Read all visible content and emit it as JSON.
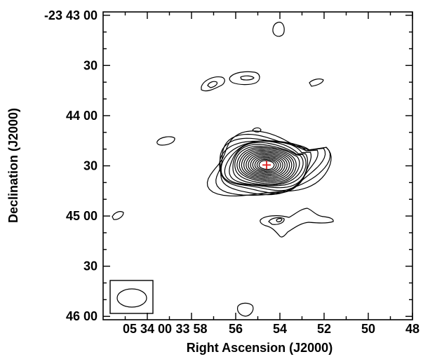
{
  "chart_data": {
    "type": "contour",
    "title": "",
    "xlabel": "Right Ascension (J2000)",
    "ylabel": "Declination (J2000)",
    "x_axis": {
      "unit": "seconds of RA (05h33m..05h34m)",
      "range": [
        62,
        48
      ],
      "ticks": [
        {
          "value": 60,
          "label": "05 34 00"
        },
        {
          "value": 58,
          "label": "33 58"
        },
        {
          "value": 56,
          "label": "56"
        },
        {
          "value": 54,
          "label": "54"
        },
        {
          "value": 52,
          "label": "52"
        },
        {
          "value": 50,
          "label": "50"
        },
        {
          "value": 48,
          "label": "48"
        }
      ]
    },
    "y_axis": {
      "unit": "arcseconds south of -23 43 00",
      "range": [
        -2,
        182
      ],
      "ticks": [
        {
          "value": 0,
          "label": "-23 43 00"
        },
        {
          "value": 30,
          "label": "30"
        },
        {
          "value": 60,
          "label": "44 00"
        },
        {
          "value": 90,
          "label": "30"
        },
        {
          "value": 120,
          "label": "45 00"
        },
        {
          "value": 150,
          "label": "30"
        },
        {
          "value": 180,
          "label": "46 00"
        }
      ]
    },
    "source_center": {
      "ra_s": 54.6,
      "dec_offset_arcsec": 89.5
    },
    "main_source_levels": 20,
    "main_source_extent": {
      "ra_s": [
        57.3,
        51.4
      ],
      "dec_offset_arcsec": [
        63,
        109
      ]
    },
    "isolated_contours": [
      {
        "ra_s": 53.9,
        "dec_offset_arcsec": 10
      },
      {
        "ra_s": 56.5,
        "dec_offset_arcsec": 42
      },
      {
        "ra_s": 55.2,
        "dec_offset_arcsec": 38
      },
      {
        "ra_s": 52.4,
        "dec_offset_arcsec": 41
      },
      {
        "ra_s": 58.4,
        "dec_offset_arcsec": 76
      },
      {
        "ra_s": 61.5,
        "dec_offset_arcsec": 119
      },
      {
        "ra_s": 53.3,
        "dec_offset_arcsec": 122
      },
      {
        "ra_s": 55.4,
        "dec_offset_arcsec": 176
      }
    ],
    "beam": {
      "present": true,
      "position": "bottom-left"
    },
    "grid": false
  }
}
